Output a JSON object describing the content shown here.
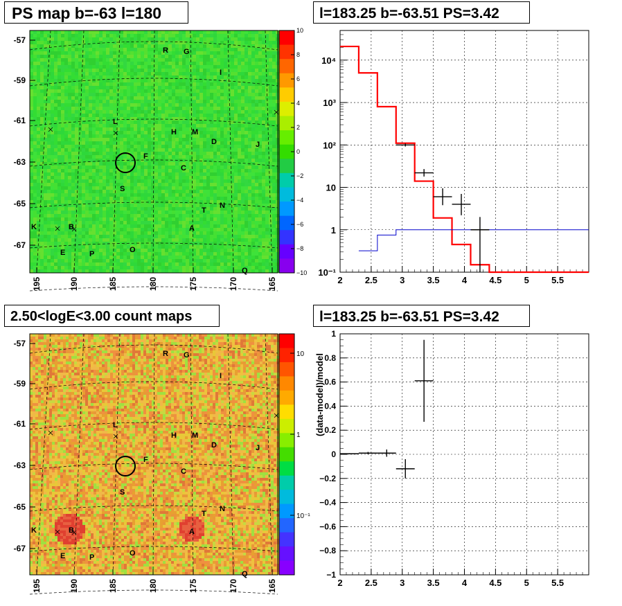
{
  "titles": {
    "map_top": "PS map b=-63 l=180",
    "spectrum_top": "l=183.25 b=-63.51 PS=3.42",
    "map_bottom": "2.50<logE<3.00 count maps",
    "spectrum_bottom": "l=183.25 b=-63.51 PS=3.42"
  },
  "colors": {
    "model_red": "#ff0000",
    "model_blue": "#0000cc",
    "data_black": "#000000",
    "map_top_background": "#33dd33",
    "map_bottom_background": "#e8b030"
  },
  "chart_data": [
    {
      "type": "heatmap",
      "name": "ps-map",
      "xlabel": "",
      "ylabel": "",
      "xticks": [
        "195",
        "190",
        "185",
        "180",
        "175",
        "170",
        "165"
      ],
      "yticks": [
        "-57",
        "-59",
        "-61",
        "-63",
        "-65",
        "-67"
      ],
      "colorbar_ticks": [
        "10",
        "8",
        "6",
        "4",
        "2",
        "0",
        "−2",
        "−4",
        "−6",
        "−8",
        "−10"
      ],
      "zrange": [
        -10,
        10
      ],
      "source_labels": [
        "R",
        "G",
        "I",
        "L",
        "H",
        "M",
        "D",
        "J",
        "F",
        "C",
        "S",
        "T",
        "N",
        "K",
        "B",
        "A",
        "E",
        "P",
        "O",
        "Q"
      ],
      "marker": "circle at l=183.25 b=-63.51"
    },
    {
      "type": "line",
      "name": "spectrum",
      "yscale": "log",
      "xlim": [
        2,
        6
      ],
      "ylim": [
        0.1,
        50000
      ],
      "xticks": [
        "2",
        "2.5",
        "3",
        "3.5",
        "4",
        "4.5",
        "5",
        "5.5"
      ],
      "yticks": [
        "10⁻¹",
        "1",
        "10",
        "10²",
        "10³",
        "10⁴"
      ],
      "series": [
        {
          "kind": "step",
          "color": "red",
          "edges": [
            2,
            2.3,
            2.6,
            2.9,
            3.2,
            3.5,
            3.8,
            4.1,
            4.4,
            6
          ],
          "values": [
            21000,
            5000,
            800,
            110,
            14,
            1.9,
            0.45,
            0.15,
            0.1
          ]
        },
        {
          "kind": "step",
          "color": "blue",
          "edges": [
            2.3,
            2.6,
            2.9,
            6
          ],
          "values": [
            0.32,
            0.75,
            1.0
          ]
        },
        {
          "kind": "points",
          "color": "black",
          "x": [
            3.05,
            3.35,
            3.65,
            3.95,
            4.25
          ],
          "xerr": [
            0.15,
            0.15,
            0.15,
            0.15,
            0.15
          ],
          "y": [
            100,
            22,
            6,
            4,
            1
          ],
          "ylow": [
            92,
            18,
            3.8,
            2.2,
            0.1
          ],
          "yhigh": [
            108,
            27,
            9.5,
            7,
            2
          ]
        }
      ]
    },
    {
      "type": "heatmap",
      "name": "count-map",
      "xlabel": "",
      "ylabel": "",
      "xticks": [
        "195",
        "190",
        "185",
        "180",
        "175",
        "170",
        "165"
      ],
      "yticks": [
        "-57",
        "-59",
        "-61",
        "-63",
        "-65",
        "-67"
      ],
      "colorbar_ticks": [
        "10",
        "1",
        "10⁻¹"
      ],
      "zscale": "log",
      "source_labels": [
        "R",
        "G",
        "I",
        "L",
        "H",
        "M",
        "D",
        "J",
        "F",
        "C",
        "S",
        "T",
        "N",
        "K",
        "B",
        "A",
        "E",
        "P",
        "O",
        "Q"
      ],
      "marker": "circle at l=183.25 b=-63.51"
    },
    {
      "type": "scatter",
      "name": "residuals",
      "xlim": [
        2,
        6
      ],
      "ylim": [
        -1,
        1
      ],
      "ylabel": "(data-model)/model",
      "xticks": [
        "2",
        "2.5",
        "3",
        "3.5",
        "4",
        "4.5",
        "5",
        "5.5"
      ],
      "yticks": [
        "−1",
        "−0.8",
        "−0.6",
        "−0.4",
        "−0.2",
        "0",
        "0.2",
        "0.4",
        "0.6",
        "0.8",
        "1"
      ],
      "series": [
        {
          "kind": "points",
          "color": "black",
          "x": [
            2.15,
            2.45,
            2.75,
            3.05,
            3.35
          ],
          "xerr": [
            0.15,
            0.15,
            0.15,
            0.15,
            0.15
          ],
          "y": [
            0.005,
            0.01,
            0.01,
            -0.12,
            0.61
          ],
          "yerr": [
            0.004,
            0.01,
            0.03,
            0.08,
            0.34
          ]
        }
      ]
    }
  ]
}
